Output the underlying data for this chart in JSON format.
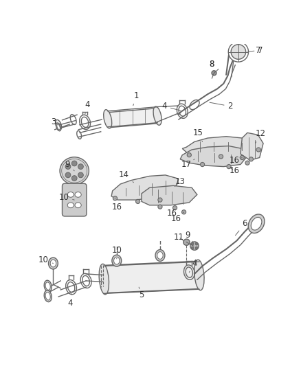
{
  "bg_color": "#ffffff",
  "lc": "#666666",
  "lc2": "#888888",
  "fig_w": 4.38,
  "fig_h": 5.33,
  "dpi": 100,
  "xlim": [
    0,
    438
  ],
  "ylim": [
    0,
    533
  ]
}
